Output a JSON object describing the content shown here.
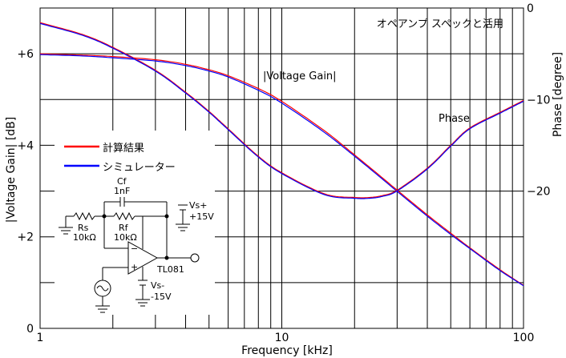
{
  "chart_data": {
    "type": "line",
    "title": "オペアンプ スペックと活用",
    "xlabel": "Frequency [kHz]",
    "ylabel_left": "|Voltage Gain| [dB]",
    "ylabel_right": "Phase [degree]",
    "x_scale": "log",
    "xlim": [
      1,
      100
    ],
    "ylim_left": [
      0,
      7
    ],
    "ylim_right": [
      -35,
      0
    ],
    "x_tick_labels": [
      {
        "x": 1,
        "label": "1"
      },
      {
        "x": 10,
        "label": "10"
      },
      {
        "x": 100,
        "label": "100"
      }
    ],
    "y_left_tick_labels": [
      {
        "y": 0,
        "label": "0"
      },
      {
        "y": 2,
        "label": "+2"
      },
      {
        "y": 4,
        "label": "+4"
      },
      {
        "y": 6,
        "label": "+6"
      }
    ],
    "y_right_tick_labels": [
      {
        "y": 0,
        "label": "0"
      },
      {
        "y": -10,
        "label": "−10"
      },
      {
        "y": -20,
        "label": "−20"
      }
    ],
    "grid": true,
    "annotations": {
      "gain": "|Voltage Gain|",
      "phase": "Phase"
    },
    "legend": {
      "position": "left-middle",
      "entries": [
        {
          "label": "計算結果",
          "color": "#ff0000"
        },
        {
          "label": "シミュレーター",
          "color": "#0000ff"
        }
      ]
    },
    "series": [
      {
        "name": "計算結果",
        "axis": "left",
        "quantity": "gain",
        "color": "#ff0000",
        "x": [
          1,
          1.5,
          2,
          3,
          4,
          5,
          6,
          8,
          10,
          15,
          20,
          25,
          30,
          40,
          50,
          60,
          80,
          100
        ],
        "y": [
          6.0,
          5.97,
          5.94,
          5.87,
          5.77,
          5.65,
          5.52,
          5.24,
          4.96,
          4.32,
          3.79,
          3.37,
          3.02,
          2.48,
          2.08,
          1.76,
          1.28,
          0.94
        ]
      },
      {
        "name": "シミュレーター",
        "axis": "left",
        "quantity": "gain",
        "color": "#0000ff",
        "x": [
          1,
          1.5,
          2,
          3,
          4,
          5,
          6,
          8,
          10,
          15,
          20,
          25,
          30,
          40,
          50,
          60,
          80,
          100
        ],
        "y": [
          6.0,
          5.97,
          5.93,
          5.86,
          5.76,
          5.64,
          5.51,
          5.22,
          4.94,
          4.3,
          3.78,
          3.36,
          3.01,
          2.47,
          2.07,
          1.76,
          1.28,
          0.95
        ]
      },
      {
        "name": "計算結果",
        "axis": "right",
        "quantity": "phase",
        "color": "#ff0000",
        "x": [
          1,
          1.5,
          2,
          3,
          4,
          5,
          6,
          8,
          10,
          15,
          20,
          23,
          26,
          30,
          40,
          50,
          60,
          80,
          100
        ],
        "y": [
          -1.6,
          -2.9,
          -4.3,
          -6.8,
          -9.2,
          -11.3,
          -13.2,
          -16.2,
          -18.0,
          -20.3,
          -20.7,
          -20.7,
          -20.5,
          -19.9,
          -17.5,
          -15.0,
          -13.1,
          -11.4,
          -10.1
        ]
      },
      {
        "name": "シミュレーター",
        "axis": "right",
        "quantity": "phase",
        "color": "#0000ff",
        "x": [
          1,
          1.5,
          2,
          3,
          4,
          5,
          6,
          8,
          10,
          15,
          20,
          23,
          26,
          30,
          40,
          50,
          60,
          80,
          100
        ],
        "y": [
          -1.6,
          -2.9,
          -4.3,
          -6.8,
          -9.2,
          -11.3,
          -13.2,
          -16.2,
          -18.0,
          -20.3,
          -20.7,
          -20.7,
          -20.5,
          -19.9,
          -17.5,
          -15.0,
          -13.1,
          -11.4,
          -10.1
        ]
      }
    ]
  },
  "circuit": {
    "cf": "Cf",
    "cf_value": "1nF",
    "rs": "Rs",
    "rs_value": "10kΩ",
    "rf": "Rf",
    "rf_value": "10kΩ",
    "vs_plus": "Vs+",
    "vs_plus_value": "+15V",
    "vs_minus": "Vs-",
    "vs_minus_value": "-15V",
    "opamp": "TL081"
  }
}
